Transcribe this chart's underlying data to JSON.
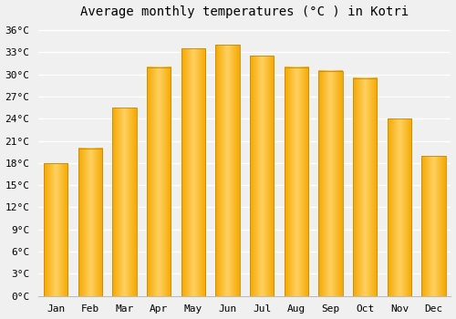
{
  "months": [
    "Jan",
    "Feb",
    "Mar",
    "Apr",
    "May",
    "Jun",
    "Jul",
    "Aug",
    "Sep",
    "Oct",
    "Nov",
    "Dec"
  ],
  "temperatures": [
    18,
    20,
    25.5,
    31,
    33.5,
    34,
    32.5,
    31,
    30.5,
    29.5,
    24,
    19
  ],
  "title": "Average monthly temperatures (°C ) in Kotri",
  "bar_color_center": "#FFD060",
  "bar_color_edge": "#F5A800",
  "bar_edge_color": "#CC8800",
  "ylim": [
    0,
    37
  ],
  "yticks": [
    0,
    3,
    6,
    9,
    12,
    15,
    18,
    21,
    24,
    27,
    30,
    33,
    36
  ],
  "ytick_labels": [
    "0°C",
    "3°C",
    "6°C",
    "9°C",
    "12°C",
    "15°C",
    "18°C",
    "21°C",
    "24°C",
    "27°C",
    "30°C",
    "33°C",
    "36°C"
  ],
  "background_color": "#f0f0f0",
  "grid_color": "#ffffff",
  "title_fontsize": 10,
  "tick_fontsize": 8
}
